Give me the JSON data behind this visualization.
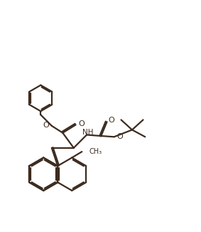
{
  "bg_color": "#ffffff",
  "line_color": "#3d2b1f",
  "line_width": 1.6,
  "figsize": [
    2.83,
    3.26
  ],
  "dpi": 100,
  "xlim": [
    0,
    10
  ],
  "ylim": [
    0,
    11.5
  ]
}
